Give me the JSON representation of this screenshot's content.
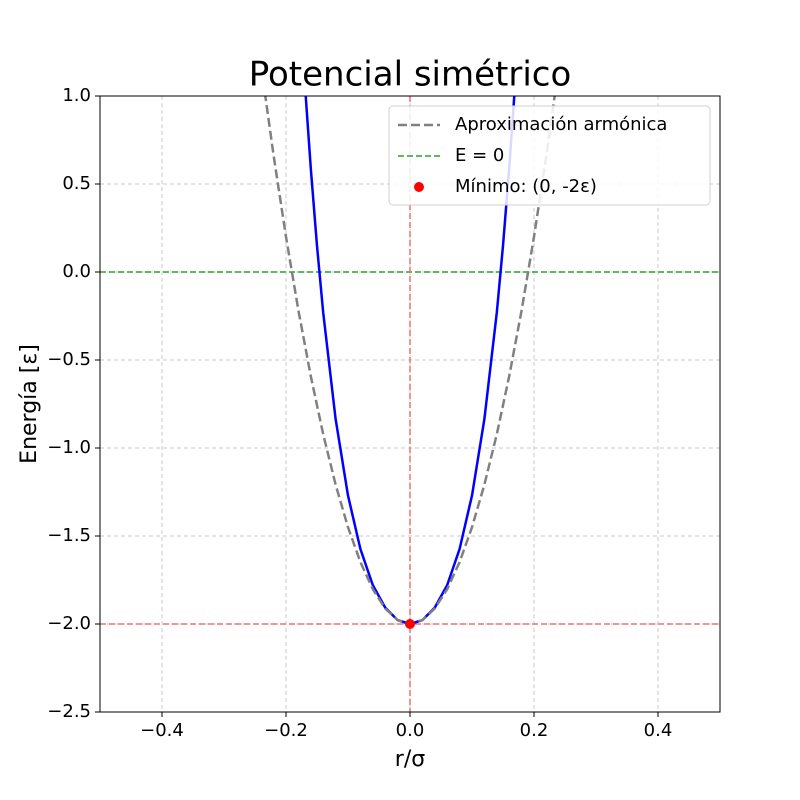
{
  "chart_data": {
    "type": "line",
    "title": "Potencial simétrico",
    "x_label": "r/σ",
    "y_label": "Energía [ε]",
    "xlim": [
      -0.5,
      0.5
    ],
    "ylim": [
      -2.5,
      1.0
    ],
    "grid": true,
    "legend": "upper right",
    "xticks": [
      {
        "value": -0.4,
        "label": "−0.4"
      },
      {
        "value": -0.2,
        "label": "−0.2"
      },
      {
        "value": 0,
        "label": "0.0"
      },
      0.2,
      0.4
    ],
    "yticks": [
      {
        "value": -2.5,
        "label": "−2.5"
      },
      {
        "value": -2,
        "label": "−2.0"
      },
      {
        "value": -1.5,
        "label": "−1.5"
      },
      {
        "value": -1,
        "label": "−1.0"
      },
      {
        "value": -0.5,
        "label": "−0.5"
      },
      {
        "value": 0,
        "label": "0.0"
      },
      0.5,
      {
        "value": 1,
        "label": "1.0"
      }
    ],
    "series": [
      {
        "color": "#0000ff",
        "style": "solid",
        "x": [
          -0.17,
          -0.16,
          -0.15,
          -0.14,
          -0.12,
          -0.1,
          -0.08,
          -0.06,
          -0.04,
          -0.02,
          0,
          0.02,
          0.04,
          0.06,
          0.08,
          0.1,
          0.12,
          0.14,
          0.15,
          0.16,
          0.17
        ],
        "values": [
          1.09,
          0.588,
          0.149,
          -0.231,
          -0.835,
          -1.27,
          -1.574,
          -1.779,
          -1.907,
          -1.978,
          -2,
          -1.978,
          -1.907,
          -1.779,
          -1.574,
          -1.27,
          -0.835,
          -0.231,
          0.149,
          0.588,
          1.09
        ]
      },
      {
        "name": "Aproximación armónica",
        "color": "#808080",
        "style": "dashed",
        "x": [
          -0.24,
          -0.22,
          -0.2,
          -0.18,
          -0.16,
          -0.14,
          -0.12,
          -0.1,
          -0.08,
          -0.06,
          -0.04,
          -0.02,
          0,
          0.02,
          0.04,
          0.06,
          0.08,
          0.1,
          0.12,
          0.14,
          0.16,
          0.18,
          0.2,
          0.22,
          0.24
        ],
        "values": [
          1.168,
          0.662,
          0.2,
          -0.218,
          -0.592,
          -0.922,
          -1.208,
          -1.45,
          -1.648,
          -1.802,
          -1.912,
          -1.978,
          -2,
          -1.978,
          -1.912,
          -1.802,
          -1.648,
          -1.45,
          -1.208,
          -0.922,
          -0.592,
          -0.218,
          0.2,
          0.662,
          1.168
        ]
      }
    ],
    "reference_lines": [
      {
        "name": "E = 0",
        "orientation": "horizontal",
        "value": 0,
        "color": "#2ca02c"
      },
      {
        "orientation": "vertical",
        "value": 0,
        "color": "#f07070"
      },
      {
        "orientation": "horizontal",
        "value": -2,
        "color": "#f07070"
      }
    ],
    "points": [
      {
        "name": "Mínimo: (0, -2ε)",
        "x": 0,
        "y": -2,
        "color": "#ff0000"
      }
    ]
  }
}
